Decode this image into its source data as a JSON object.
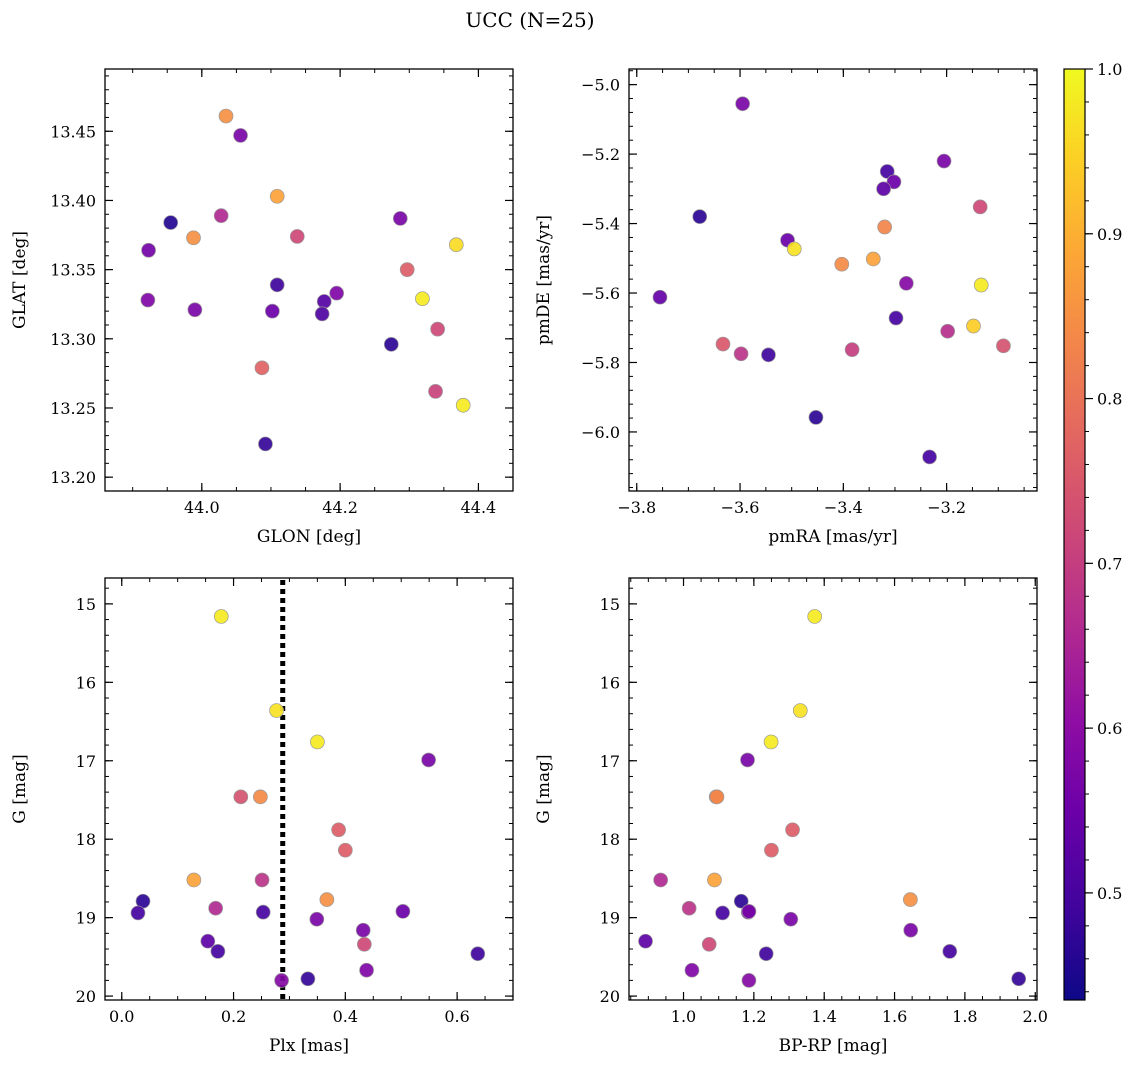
{
  "figure": {
    "title": "UCC (N=25)"
  },
  "chart_data": [
    {
      "type": "scatter",
      "panel": "top-left",
      "xlabel": "GLON [deg]",
      "ylabel": "GLAT [deg]",
      "xlim": [
        43.86,
        44.45
      ],
      "ylim": [
        13.19,
        13.495
      ],
      "y_inverted": false,
      "xticks": [
        44.0,
        44.2,
        44.4
      ],
      "xtick_labels": [
        "44.0",
        "44.2",
        "44.4"
      ],
      "yticks": [
        13.2,
        13.25,
        13.3,
        13.35,
        13.4,
        13.45
      ],
      "ytick_labels": [
        "13.20",
        "13.25",
        "13.30",
        "13.35",
        "13.40",
        "13.45"
      ],
      "points": [
        {
          "x": 44.035,
          "y": 13.461,
          "c": 0.85
        },
        {
          "x": 44.056,
          "y": 13.447,
          "c": 0.57
        },
        {
          "x": 44.109,
          "y": 13.403,
          "c": 0.88
        },
        {
          "x": 43.955,
          "y": 13.384,
          "c": 0.46
        },
        {
          "x": 44.028,
          "y": 13.389,
          "c": 0.66
        },
        {
          "x": 44.287,
          "y": 13.387,
          "c": 0.57
        },
        {
          "x": 43.988,
          "y": 13.373,
          "c": 0.85
        },
        {
          "x": 44.138,
          "y": 13.374,
          "c": 0.72
        },
        {
          "x": 44.368,
          "y": 13.368,
          "c": 0.96
        },
        {
          "x": 43.923,
          "y": 13.364,
          "c": 0.56
        },
        {
          "x": 44.297,
          "y": 13.35,
          "c": 0.76
        },
        {
          "x": 44.109,
          "y": 13.339,
          "c": 0.49
        },
        {
          "x": 44.195,
          "y": 13.333,
          "c": 0.58
        },
        {
          "x": 43.922,
          "y": 13.328,
          "c": 0.58
        },
        {
          "x": 44.319,
          "y": 13.329,
          "c": 0.98
        },
        {
          "x": 44.177,
          "y": 13.327,
          "c": 0.52
        },
        {
          "x": 43.99,
          "y": 13.321,
          "c": 0.57
        },
        {
          "x": 44.102,
          "y": 13.32,
          "c": 0.55
        },
        {
          "x": 44.174,
          "y": 13.318,
          "c": 0.51
        },
        {
          "x": 44.341,
          "y": 13.307,
          "c": 0.72
        },
        {
          "x": 44.274,
          "y": 13.296,
          "c": 0.47
        },
        {
          "x": 44.087,
          "y": 13.279,
          "c": 0.77
        },
        {
          "x": 44.338,
          "y": 13.262,
          "c": 0.71
        },
        {
          "x": 44.378,
          "y": 13.252,
          "c": 0.98
        },
        {
          "x": 44.092,
          "y": 13.224,
          "c": 0.48
        }
      ]
    },
    {
      "type": "scatter",
      "panel": "top-right",
      "xlabel": "pmRA [mas/yr]",
      "ylabel": "pmDE [mas/yr]",
      "xlim": [
        -3.815,
        -3.025
      ],
      "ylim": [
        -6.17,
        -4.955
      ],
      "y_inverted": false,
      "xticks": [
        -3.8,
        -3.6,
        -3.4,
        -3.2
      ],
      "xtick_labels": [
        "−3.8",
        "−3.6",
        "−3.4",
        "−3.2"
      ],
      "yticks": [
        -6.0,
        -5.8,
        -5.6,
        -5.4,
        -5.2,
        -5.0
      ],
      "ytick_labels": [
        "−6.0",
        "−5.8",
        "−5.6",
        "−5.4",
        "−5.2",
        "−5.0"
      ],
      "points": [
        {
          "x": -3.595,
          "y": -5.055,
          "c": 0.57
        },
        {
          "x": -3.205,
          "y": -5.22,
          "c": 0.57
        },
        {
          "x": -3.315,
          "y": -5.25,
          "c": 0.5
        },
        {
          "x": -3.302,
          "y": -5.28,
          "c": 0.55
        },
        {
          "x": -3.322,
          "y": -5.3,
          "c": 0.53
        },
        {
          "x": -3.135,
          "y": -5.352,
          "c": 0.72
        },
        {
          "x": -3.678,
          "y": -5.38,
          "c": 0.47
        },
        {
          "x": -3.32,
          "y": -5.41,
          "c": 0.83
        },
        {
          "x": -3.508,
          "y": -5.448,
          "c": 0.55
        },
        {
          "x": -3.495,
          "y": -5.473,
          "c": 0.97
        },
        {
          "x": -3.342,
          "y": -5.502,
          "c": 0.88
        },
        {
          "x": -3.403,
          "y": -5.517,
          "c": 0.84
        },
        {
          "x": -3.278,
          "y": -5.572,
          "c": 0.59
        },
        {
          "x": -3.133,
          "y": -5.577,
          "c": 0.98
        },
        {
          "x": -3.755,
          "y": -5.612,
          "c": 0.54
        },
        {
          "x": -3.298,
          "y": -5.672,
          "c": 0.5
        },
        {
          "x": -3.148,
          "y": -5.695,
          "c": 0.94
        },
        {
          "x": -3.198,
          "y": -5.71,
          "c": 0.67
        },
        {
          "x": -3.633,
          "y": -5.747,
          "c": 0.75
        },
        {
          "x": -3.09,
          "y": -5.752,
          "c": 0.74
        },
        {
          "x": -3.383,
          "y": -5.763,
          "c": 0.7
        },
        {
          "x": -3.598,
          "y": -5.775,
          "c": 0.68
        },
        {
          "x": -3.545,
          "y": -5.778,
          "c": 0.49
        },
        {
          "x": -3.453,
          "y": -5.958,
          "c": 0.47
        },
        {
          "x": -3.233,
          "y": -6.072,
          "c": 0.5
        }
      ]
    },
    {
      "type": "scatter",
      "panel": "bottom-left",
      "xlabel": "Plx [mas]",
      "ylabel": "G [mag]",
      "xlim": [
        -0.03,
        0.7
      ],
      "ylim": [
        20.05,
        14.67
      ],
      "y_inverted": true,
      "xticks": [
        0.0,
        0.2,
        0.4,
        0.6
      ],
      "xtick_labels": [
        "0.0",
        "0.2",
        "0.4",
        "0.6"
      ],
      "yticks": [
        15,
        16,
        17,
        18,
        19,
        20
      ],
      "ytick_labels": [
        "15",
        "16",
        "17",
        "18",
        "19",
        "20"
      ],
      "vline": {
        "x": 0.288,
        "style": "dotted",
        "color": "#000000"
      },
      "points": [
        {
          "x": 0.178,
          "y": 15.16,
          "c": 0.98
        },
        {
          "x": 0.277,
          "y": 16.36,
          "c": 0.97
        },
        {
          "x": 0.35,
          "y": 16.76,
          "c": 0.98
        },
        {
          "x": 0.549,
          "y": 16.99,
          "c": 0.57
        },
        {
          "x": 0.213,
          "y": 17.46,
          "c": 0.74
        },
        {
          "x": 0.248,
          "y": 17.46,
          "c": 0.84
        },
        {
          "x": 0.388,
          "y": 17.88,
          "c": 0.76
        },
        {
          "x": 0.4,
          "y": 18.14,
          "c": 0.76
        },
        {
          "x": 0.129,
          "y": 18.52,
          "c": 0.88
        },
        {
          "x": 0.251,
          "y": 18.52,
          "c": 0.68
        },
        {
          "x": 0.367,
          "y": 18.77,
          "c": 0.85
        },
        {
          "x": 0.038,
          "y": 18.79,
          "c": 0.47
        },
        {
          "x": 0.168,
          "y": 18.88,
          "c": 0.66
        },
        {
          "x": 0.029,
          "y": 18.94,
          "c": 0.5
        },
        {
          "x": 0.253,
          "y": 18.93,
          "c": 0.5
        },
        {
          "x": 0.503,
          "y": 18.92,
          "c": 0.55
        },
        {
          "x": 0.349,
          "y": 19.02,
          "c": 0.57
        },
        {
          "x": 0.432,
          "y": 19.16,
          "c": 0.57
        },
        {
          "x": 0.154,
          "y": 19.3,
          "c": 0.53
        },
        {
          "x": 0.434,
          "y": 19.34,
          "c": 0.72
        },
        {
          "x": 0.172,
          "y": 19.43,
          "c": 0.5
        },
        {
          "x": 0.637,
          "y": 19.46,
          "c": 0.49
        },
        {
          "x": 0.438,
          "y": 19.67,
          "c": 0.58
        },
        {
          "x": 0.286,
          "y": 19.8,
          "c": 0.59
        },
        {
          "x": 0.333,
          "y": 19.78,
          "c": 0.48
        }
      ]
    },
    {
      "type": "scatter",
      "panel": "bottom-right",
      "xlabel": "BP-RP [mag]",
      "ylabel": "G [mag]",
      "xlim": [
        0.845,
        2.005
      ],
      "ylim": [
        20.05,
        14.67
      ],
      "y_inverted": true,
      "xticks": [
        1.0,
        1.2,
        1.4,
        1.6,
        1.8,
        2.0
      ],
      "xtick_labels": [
        "1.0",
        "1.2",
        "1.4",
        "1.6",
        "1.8",
        "2.0"
      ],
      "yticks": [
        15,
        16,
        17,
        18,
        19,
        20
      ],
      "ytick_labels": [
        "15",
        "16",
        "17",
        "18",
        "19",
        "20"
      ],
      "points": [
        {
          "x": 1.373,
          "y": 15.16,
          "c": 0.98
        },
        {
          "x": 1.332,
          "y": 16.36,
          "c": 0.97
        },
        {
          "x": 1.249,
          "y": 16.76,
          "c": 0.98
        },
        {
          "x": 1.182,
          "y": 16.99,
          "c": 0.57
        },
        {
          "x": 1.093,
          "y": 17.46,
          "c": 0.74
        },
        {
          "x": 1.095,
          "y": 17.46,
          "c": 0.84
        },
        {
          "x": 1.31,
          "y": 17.88,
          "c": 0.76
        },
        {
          "x": 1.25,
          "y": 18.14,
          "c": 0.76
        },
        {
          "x": 0.935,
          "y": 18.52,
          "c": 0.66
        },
        {
          "x": 1.088,
          "y": 18.52,
          "c": 0.88
        },
        {
          "x": 1.645,
          "y": 18.77,
          "c": 0.85
        },
        {
          "x": 1.164,
          "y": 18.79,
          "c": 0.47
        },
        {
          "x": 1.016,
          "y": 18.88,
          "c": 0.68
        },
        {
          "x": 1.111,
          "y": 18.94,
          "c": 0.5
        },
        {
          "x": 1.184,
          "y": 18.93,
          "c": 0.55
        },
        {
          "x": 1.186,
          "y": 18.92,
          "c": 0.57
        },
        {
          "x": 1.305,
          "y": 19.02,
          "c": 0.57
        },
        {
          "x": 1.646,
          "y": 19.16,
          "c": 0.57
        },
        {
          "x": 0.892,
          "y": 19.3,
          "c": 0.53
        },
        {
          "x": 1.073,
          "y": 19.34,
          "c": 0.72
        },
        {
          "x": 1.235,
          "y": 19.46,
          "c": 0.49
        },
        {
          "x": 1.757,
          "y": 19.43,
          "c": 0.5
        },
        {
          "x": 1.024,
          "y": 19.67,
          "c": 0.58
        },
        {
          "x": 1.186,
          "y": 19.8,
          "c": 0.59
        },
        {
          "x": 1.953,
          "y": 19.78,
          "c": 0.48
        }
      ]
    }
  ],
  "colorbar": {
    "cmap": "plasma",
    "vmin": 0.435,
    "vmax": 1.0,
    "ticks": [
      0.5,
      0.6,
      0.7,
      0.8,
      0.9,
      1.0
    ],
    "tick_labels": [
      "0.5",
      "0.6",
      "0.7",
      "0.8",
      "0.9",
      "1.0"
    ]
  },
  "style": {
    "marker_edge_color": "#9a9a9a",
    "vline_color": "#000000"
  }
}
